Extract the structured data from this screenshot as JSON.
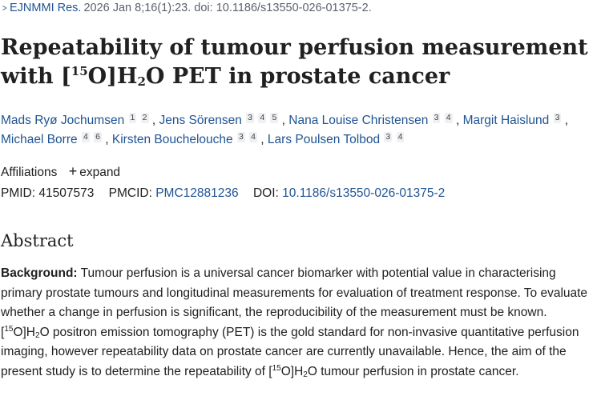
{
  "citation": {
    "journal": "EJNMMI Res.",
    "details": "2026 Jan 8;16(1):23. doi: 10.1186/s13550-026-01375-2."
  },
  "title": {
    "part1": "Repeatability of tumour perfusion measurement with [",
    "sup": "15",
    "part2": "O]H",
    "sub": "2",
    "part3": "O PET in prostate cancer"
  },
  "authors": [
    {
      "name": "Mads Ryø Jochumsen",
      "affiliations": [
        "1",
        "2"
      ]
    },
    {
      "name": "Jens Sörensen",
      "affiliations": [
        "3",
        "4",
        "5"
      ]
    },
    {
      "name": "Nana Louise Christensen",
      "affiliations": [
        "3",
        "4"
      ]
    },
    {
      "name": "Margit Haislund",
      "affiliations": [
        "3"
      ]
    },
    {
      "name": "Michael Borre",
      "affiliations": [
        "4",
        "6"
      ]
    },
    {
      "name": "Kirsten Bouchelouche",
      "affiliations": [
        "3",
        "4"
      ]
    },
    {
      "name": "Lars Poulsen Tolbod",
      "affiliations": [
        "3",
        "4"
      ]
    }
  ],
  "affiliations": {
    "label": "Affiliations",
    "expand_label": "expand"
  },
  "identifiers": {
    "pmid_label": "PMID:",
    "pmid": "41507573",
    "pmcid_label": "PMCID:",
    "pmcid": "PMC12881236",
    "doi_label": "DOI:",
    "doi": "10.1186/s13550-026-01375-2"
  },
  "abstract": {
    "heading": "Abstract",
    "label": "Background:",
    "t1": " Tumour perfusion is a universal cancer biomarker with potential value in characterising primary prostate tumours and longitudinal measurements for evaluation of treatment response. To evaluate whether a change in perfusion is significant, the reproducibility of the measurement must be known. [",
    "sup1": "15",
    "t2": "O]H",
    "sub1": "2",
    "t3": "O positron emission tomography (PET) is the gold standard for non-invasive quantitative perfusion imaging, however repeatability data on prostate cancer are currently unavailable. Hence, the aim of the present study is to determine the repeatability of [",
    "sup2": "15",
    "t4": "O]H",
    "sub2": "2",
    "t5": "O tumour perfusion in prostate cancer."
  }
}
